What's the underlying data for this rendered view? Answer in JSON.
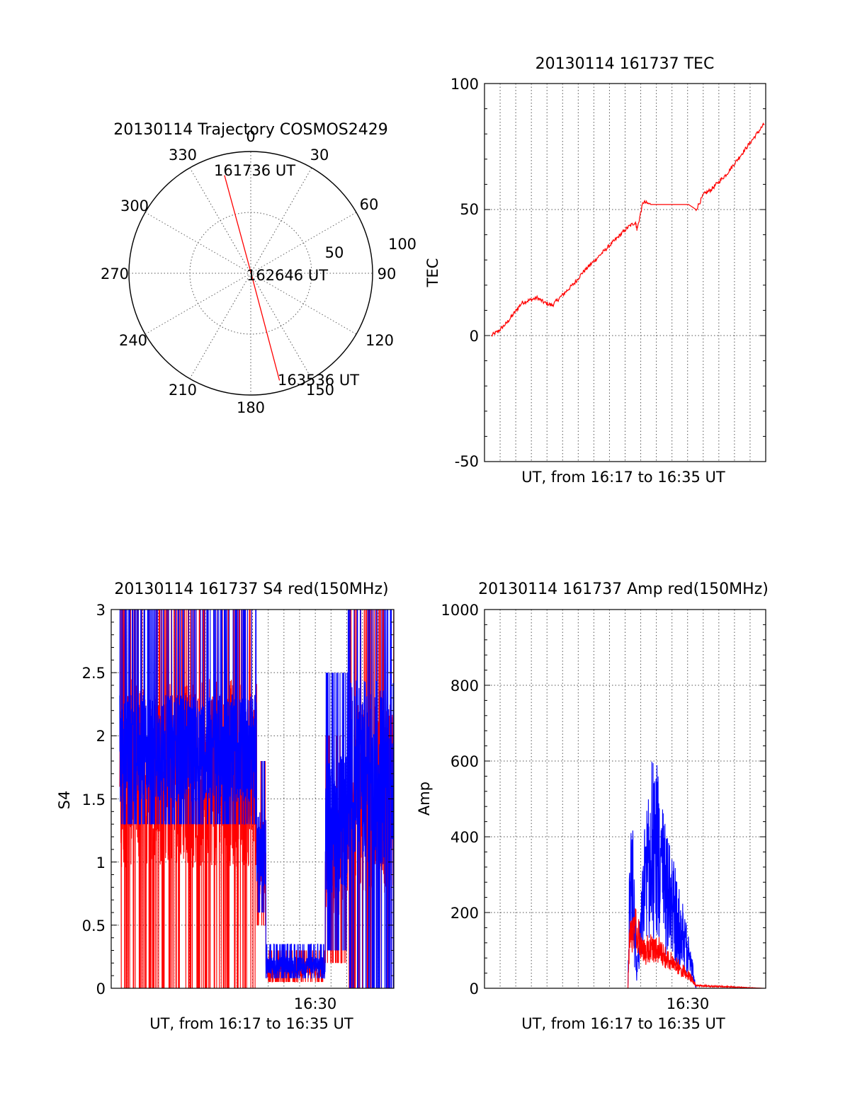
{
  "chart_data": [
    {
      "type": "polar",
      "title": "20130114 Trajectory COSMOS2429",
      "angle_labels": [
        "0",
        "30",
        "60",
        "90",
        "120",
        "150",
        "180",
        "210",
        "240",
        "270",
        "300",
        "330"
      ],
      "radius_labels": [
        "50",
        "100"
      ],
      "grid": true,
      "trajectory": {
        "color": "#ff0000",
        "points": [
          {
            "label": "161736 UT",
            "azimuth": 345,
            "elevation": 15
          },
          {
            "label": "162646 UT",
            "azimuth": 0,
            "elevation": 89
          },
          {
            "label": "163536 UT",
            "azimuth": 165,
            "elevation": 8
          }
        ]
      }
    },
    {
      "type": "line",
      "title": "20130114 161737 TEC",
      "xlabel": "UT, from 16:17 to 16:35 UT",
      "ylabel": "TEC",
      "xlim": [
        "16:17",
        "16:35"
      ],
      "ylim": [
        -50,
        100
      ],
      "yticks": [
        "-50",
        "0",
        "50",
        "100"
      ],
      "grid": true,
      "series": [
        {
          "color": "#ff0000",
          "x_minutes": [
            0,
            0.5,
            1.0,
            1.5,
            2.0,
            2.5,
            3.0,
            3.5,
            4.0,
            4.5,
            5.0,
            5.5,
            6.0,
            6.5,
            7.0,
            7.5,
            8.0,
            8.5,
            9.0,
            9.5,
            9.6,
            10.0,
            10.5,
            11.0,
            11.5,
            12.0,
            12.5,
            13.0,
            13.5,
            14.0,
            14.5,
            15.0,
            15.5,
            16.0,
            16.5,
            17.0,
            17.5,
            18.0
          ],
          "values": [
            0,
            2,
            5,
            9,
            13,
            14,
            15,
            13,
            12,
            15,
            18,
            21,
            25,
            28,
            31,
            34,
            37,
            40,
            43,
            45,
            42,
            53,
            52,
            52,
            52,
            52,
            52,
            52,
            50,
            56,
            58,
            61,
            64,
            68,
            72,
            76,
            80,
            84
          ]
        }
      ]
    },
    {
      "type": "line",
      "title": "20130114 161737 S4 red(150MHz)",
      "xlabel": "UT, from 16:17 to 16:35 UT",
      "ylabel": "S4",
      "xlim": [
        "16:17",
        "16:35"
      ],
      "ylim": [
        0,
        3
      ],
      "yticks": [
        "0",
        "0.5",
        "1",
        "1.5",
        "2",
        "2.5",
        "3"
      ],
      "xtick_label": "16:30",
      "grid": true,
      "series": [
        {
          "color": "#ff0000",
          "segments": [
            {
              "x_minutes": [
                0,
                9
              ],
              "min": 0,
              "max": 3,
              "typical": 1.7
            },
            {
              "x_minutes": [
                9,
                9.6
              ],
              "min": 0.5,
              "max": 1.8,
              "typical": 1.0
            },
            {
              "x_minutes": [
                9.6,
                13.5
              ],
              "min": 0.05,
              "max": 0.3,
              "typical": 0.15
            },
            {
              "x_minutes": [
                13.5,
                15.0
              ],
              "min": 0.2,
              "max": 2.0,
              "typical": 1.0
            },
            {
              "x_minutes": [
                15.0,
                18.0
              ],
              "min": 0,
              "max": 3,
              "typical": 1.5
            }
          ]
        },
        {
          "color": "#0000ff",
          "segments": [
            {
              "x_minutes": [
                0,
                9
              ],
              "min": 1.3,
              "max": 3,
              "typical": 1.9
            },
            {
              "x_minutes": [
                9,
                9.6
              ],
              "min": 0.6,
              "max": 1.8,
              "typical": 1.1
            },
            {
              "x_minutes": [
                9.6,
                13.5
              ],
              "min": 0.08,
              "max": 0.35,
              "typical": 0.18
            },
            {
              "x_minutes": [
                13.5,
                15.0
              ],
              "min": 0.3,
              "max": 2.5,
              "typical": 1.3
            },
            {
              "x_minutes": [
                15.0,
                18.0
              ],
              "min": 0,
              "max": 3,
              "typical": 1.7
            }
          ]
        }
      ]
    },
    {
      "type": "line",
      "title": "20130114 161737 Amp red(150MHz)",
      "xlabel": "UT, from 16:17 to 16:35 UT",
      "ylabel": "Amp",
      "xlim": [
        "16:17",
        "16:35"
      ],
      "ylim": [
        0,
        1000
      ],
      "yticks": [
        "0",
        "200",
        "400",
        "600",
        "800",
        "1000"
      ],
      "xtick_label": "16:30",
      "grid": true,
      "series": [
        {
          "color": "#0000ff",
          "x_minutes": [
            0,
            9.0,
            9.1,
            9.3,
            9.6,
            10.0,
            10.5,
            11.0,
            11.5,
            12.0,
            12.5,
            13.0,
            13.5,
            18.0
          ],
          "values": [
            0,
            0,
            380,
            450,
            60,
            380,
            630,
            600,
            420,
            350,
            250,
            150,
            0,
            0
          ]
        },
        {
          "color": "#ff0000",
          "x_minutes": [
            0,
            9.0,
            9.1,
            9.5,
            10.0,
            10.5,
            11.0,
            11.5,
            12.0,
            12.5,
            13.0,
            13.5,
            18.0
          ],
          "values": [
            0,
            0,
            180,
            220,
            130,
            150,
            140,
            110,
            90,
            70,
            50,
            10,
            0
          ]
        }
      ]
    }
  ]
}
